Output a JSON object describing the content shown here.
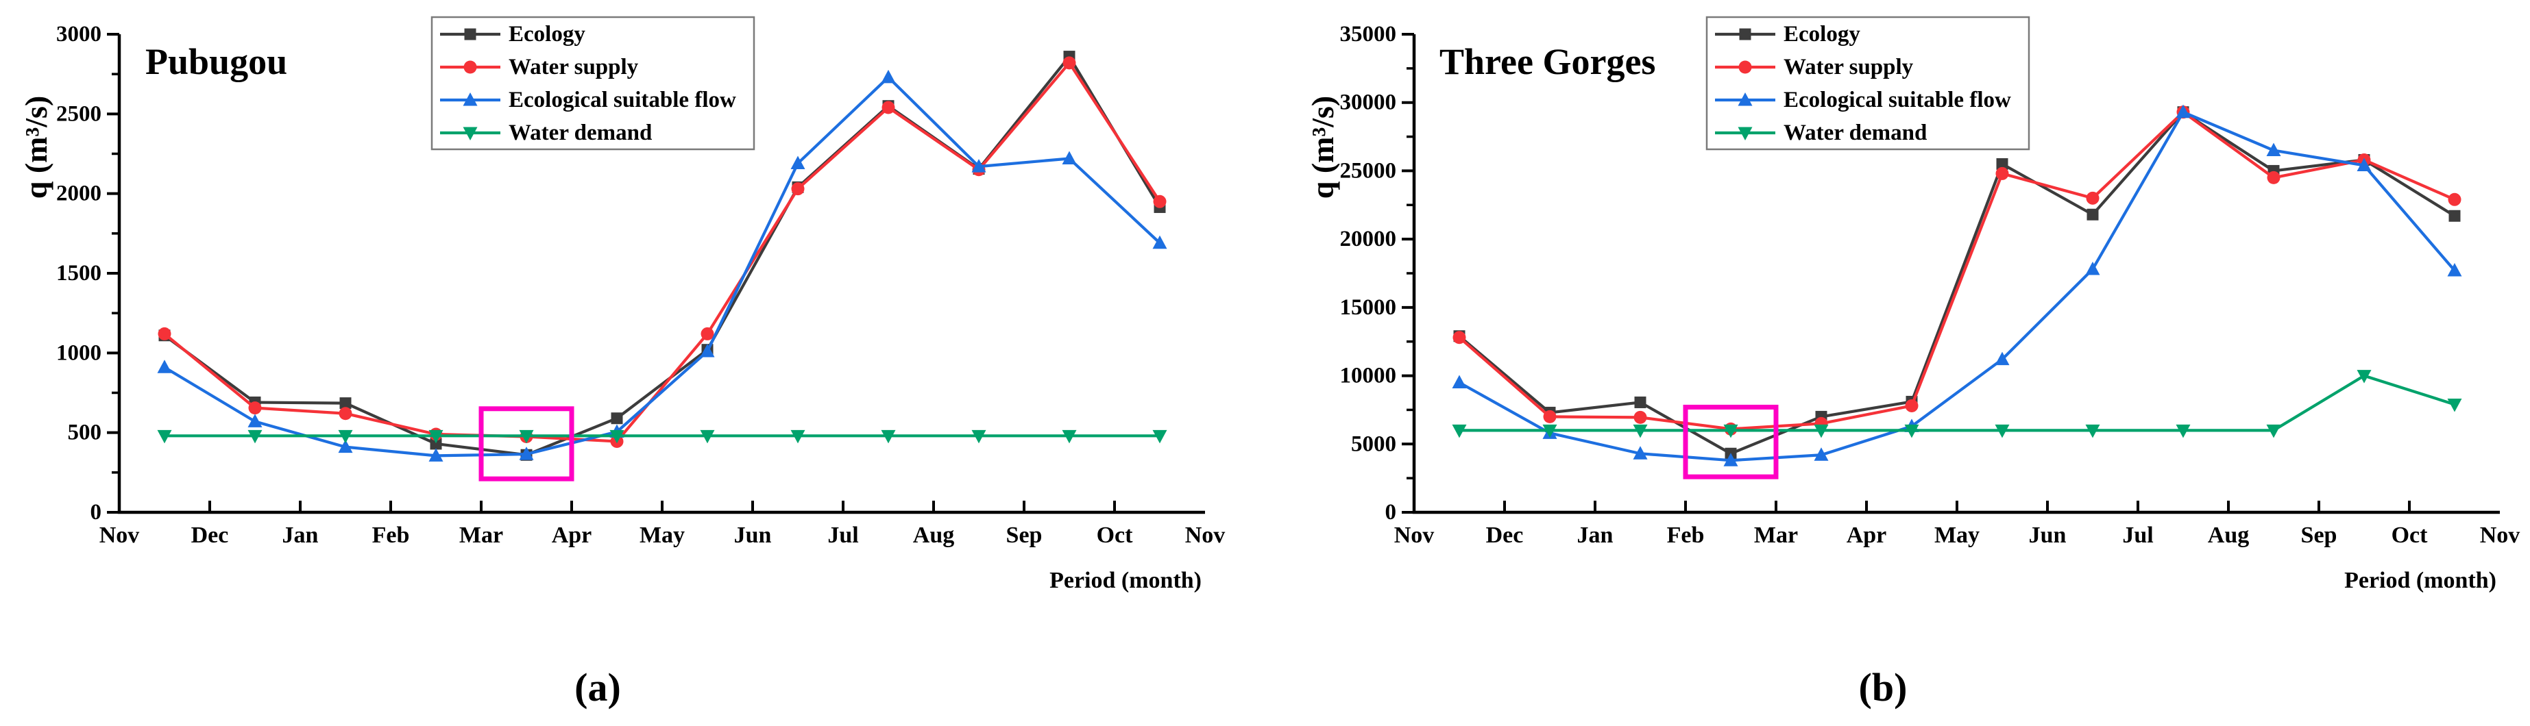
{
  "figure": {
    "description_labels": {
      "panel_a": "(a)",
      "panel_b": "(b)"
    }
  },
  "chart_data": [
    {
      "type": "line",
      "title": "Pubugou",
      "panel_label": "(a)",
      "xlabel": "Period (month)",
      "ylabel": "q (m³/s)",
      "ylim": [
        0,
        3000
      ],
      "ytick_step": 500,
      "ytick_minor_step": 250,
      "ytick_labels": [
        "0",
        "500",
        "1000",
        "1500",
        "2000",
        "2500",
        "3000"
      ],
      "x_tick_labels": [
        "Nov",
        "Dec",
        "Jan",
        "Feb",
        "Mar",
        "Apr",
        "May",
        "Jun",
        "Jul",
        "Aug",
        "Sep",
        "Oct",
        "Nov"
      ],
      "categories": [
        "Nov",
        "Dec",
        "Jan",
        "Feb",
        "Mar",
        "Apr",
        "May",
        "Jun",
        "Jul",
        "Aug",
        "Sep",
        "Oct"
      ],
      "grid": false,
      "legend_position": "top-center",
      "series": [
        {
          "name": "Ecology",
          "color": "#3c3c3c",
          "marker": "square",
          "values": [
            1110,
            690,
            685,
            430,
            360,
            590,
            1020,
            2040,
            2550,
            2155,
            2860,
            1915
          ]
        },
        {
          "name": "Water supply",
          "color": "#f53238",
          "marker": "circle",
          "values": [
            1120,
            655,
            620,
            490,
            475,
            445,
            1120,
            2030,
            2540,
            2150,
            2820,
            1950
          ]
        },
        {
          "name": "Ecological suitable flow",
          "color": "#1d6fe0",
          "marker": "triangle-up",
          "values": [
            910,
            570,
            410,
            355,
            365,
            505,
            1010,
            2190,
            2730,
            2170,
            2220,
            1690
          ]
        },
        {
          "name": "Water demand",
          "color": "#00a26b",
          "marker": "triangle-down",
          "values": [
            480,
            480,
            480,
            480,
            480,
            480,
            480,
            480,
            480,
            480,
            480,
            480
          ]
        }
      ],
      "highlight_box": {
        "color": "#ff00c4",
        "x_from_month": "Mar",
        "x_to_month": "Apr",
        "x_index_range": [
          4,
          5
        ],
        "y_range": [
          210,
          650
        ]
      }
    },
    {
      "type": "line",
      "title": "Three Gorges",
      "panel_label": "(b)",
      "xlabel": "Period (month)",
      "ylabel": "q (m³/s)",
      "ylim": [
        0,
        35000
      ],
      "ytick_step": 5000,
      "ytick_minor_step": 2500,
      "ytick_labels": [
        "0",
        "5000",
        "10000",
        "15000",
        "20000",
        "25000",
        "30000",
        "35000"
      ],
      "x_tick_labels": [
        "Nov",
        "Dec",
        "Jan",
        "Feb",
        "Mar",
        "Apr",
        "May",
        "Jun",
        "Jul",
        "Aug",
        "Sep",
        "Oct",
        "Nov"
      ],
      "categories": [
        "Nov",
        "Dec",
        "Jan",
        "Feb",
        "Mar",
        "Apr",
        "May",
        "Jun",
        "Jul",
        "Aug",
        "Sep",
        "Oct"
      ],
      "grid": false,
      "legend_position": "top-center",
      "series": [
        {
          "name": "Ecology",
          "color": "#3c3c3c",
          "marker": "square",
          "values": [
            12900,
            7300,
            8050,
            4300,
            7000,
            8100,
            25500,
            21800,
            29300,
            25000,
            25800,
            21700
          ]
        },
        {
          "name": "Water supply",
          "color": "#f53238",
          "marker": "circle",
          "values": [
            12800,
            7000,
            6950,
            6100,
            6500,
            7800,
            24800,
            23000,
            29300,
            24500,
            25800,
            22900
          ]
        },
        {
          "name": "Ecological suitable flow",
          "color": "#1d6fe0",
          "marker": "triangle-up",
          "values": [
            9500,
            5800,
            4300,
            3800,
            4200,
            6300,
            11200,
            17800,
            29300,
            26500,
            25400,
            17700
          ]
        },
        {
          "name": "Water demand",
          "color": "#00a26b",
          "marker": "triangle-down",
          "values": [
            6000,
            6000,
            6000,
            6000,
            6000,
            6000,
            6000,
            6000,
            6000,
            6000,
            10000,
            7900
          ]
        }
      ],
      "highlight_box": {
        "color": "#ff00c4",
        "x_from_month": "Feb",
        "x_to_month": "Mar",
        "x_index_range": [
          3,
          4
        ],
        "y_range": [
          2600,
          7700
        ]
      }
    }
  ]
}
